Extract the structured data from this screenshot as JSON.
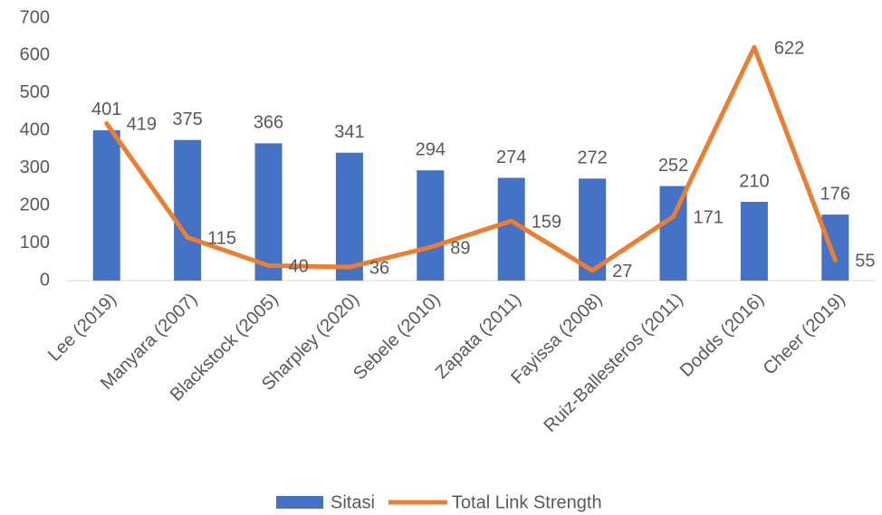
{
  "chart_data": {
    "type": "combo",
    "categories": [
      "Lee (2019)",
      "Manyara (2007)",
      "Blackstock (2005)",
      "Sharpley (2020)",
      "Sebele (2010)",
      "Zapata (2011)",
      "Fayissa (2008)",
      "Ruiz-Ballesteros (2011)",
      "Dodds (2016)",
      "Cheer (2019)"
    ],
    "series": [
      {
        "name": "Sitasi",
        "type": "bar",
        "color": "#4472c4",
        "values": [
          401,
          375,
          366,
          341,
          294,
          274,
          272,
          252,
          210,
          176
        ]
      },
      {
        "name": "Total Link Strength",
        "type": "line",
        "color": "#ed7d31",
        "values": [
          419,
          115,
          40,
          36,
          89,
          159,
          27,
          171,
          622,
          55
        ]
      }
    ],
    "ylim": [
      0,
      700
    ],
    "yticks": [
      0,
      100,
      200,
      300,
      400,
      500,
      600,
      700
    ],
    "grid": false,
    "legend": "bottom"
  }
}
